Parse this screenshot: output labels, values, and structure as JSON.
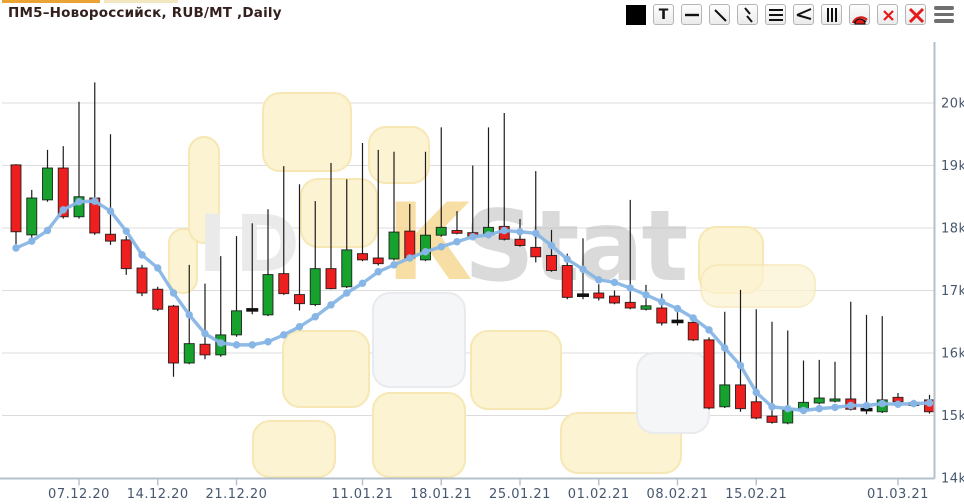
{
  "page": {
    "title": "ПМ5–Новороссийск, RUB/MT ,Daily"
  },
  "toolbar": {
    "text_tool_glyph": "T",
    "icons": [
      "fill-color-swatch",
      "text-tool",
      "horizontal-line-tool",
      "trendline-tool",
      "parallel-lines-tool",
      "fib-retracement-tool",
      "fan-lines-tool",
      "vertical-lines-tool",
      "fib-arcs-tool",
      "delete-tool",
      "delete-all-tool",
      "menu"
    ]
  },
  "watermark": {
    "letters_gray": "ID",
    "letter_accent": "К",
    "text_main": "Stat"
  },
  "chart_data": {
    "type": "candlestick",
    "title": "ПМ5–Новороссийск, RUB/MT ,Daily",
    "ylabel": "RUB/MT",
    "grid": true,
    "up_color": "#17a22e",
    "down_color": "#ee1f1f",
    "doji_color": "#111111",
    "wick_color": "#1c1c1c",
    "ma_color": "#87b6e6",
    "axis_line_color": "#b3c0cc",
    "label_color": "#47576d",
    "y_axis": {
      "min": 14000,
      "max": 20900,
      "ticks": [
        {
          "label": "20k",
          "value": 20000
        },
        {
          "label": "19k",
          "value": 19000
        },
        {
          "label": "18k",
          "value": 18000
        },
        {
          "label": "17k",
          "value": 17000
        },
        {
          "label": "16k",
          "value": 16000
        },
        {
          "label": "15k",
          "value": 15000
        },
        {
          "label": "14k",
          "value": 14000
        }
      ]
    },
    "x_axis": {
      "ticks": [
        {
          "label": "07.12.20",
          "candle": 5
        },
        {
          "label": "14.12.20",
          "candle": 10
        },
        {
          "label": "21.12.20",
          "candle": 15
        },
        {
          "label": "11.01.21",
          "candle": 23
        },
        {
          "label": "18.01.21",
          "candle": 28
        },
        {
          "label": "25.01.21",
          "candle": 33
        },
        {
          "label": "01.02.21",
          "candle": 38
        },
        {
          "label": "08.02.21",
          "candle": 43
        },
        {
          "label": "15.02.21",
          "candle": 48
        },
        {
          "label": "01.03.21",
          "candle": 57
        }
      ]
    },
    "candles": [
      [
        19010,
        19020,
        17740,
        17940,
        "r"
      ],
      [
        17890,
        18610,
        17810,
        18480,
        "g"
      ],
      [
        18450,
        19250,
        18420,
        18960,
        "g"
      ],
      [
        18960,
        19310,
        18150,
        18180,
        "r"
      ],
      [
        18180,
        20020,
        18150,
        18500,
        "g"
      ],
      [
        18480,
        20330,
        17890,
        17920,
        "r"
      ],
      [
        17900,
        19500,
        17730,
        17790,
        "r"
      ],
      [
        17810,
        17870,
        17250,
        17350,
        "r"
      ],
      [
        17360,
        17410,
        16910,
        16960,
        "r"
      ],
      [
        17020,
        17060,
        16670,
        16700,
        "r"
      ],
      [
        16750,
        16770,
        15620,
        15840,
        "r"
      ],
      [
        15840,
        17410,
        15820,
        16150,
        "g"
      ],
      [
        16140,
        17110,
        15900,
        15970,
        "r"
      ],
      [
        15970,
        17550,
        15940,
        16290,
        "g"
      ],
      [
        16290,
        17870,
        16260,
        16675,
        "g"
      ],
      [
        16695,
        18075,
        16620,
        16685,
        "k"
      ],
      [
        16610,
        18300,
        16590,
        17255,
        "g"
      ],
      [
        17270,
        18990,
        16930,
        16950,
        "r"
      ],
      [
        16935,
        18700,
        16680,
        16790,
        "r"
      ],
      [
        16775,
        18430,
        16750,
        17350,
        "g"
      ],
      [
        17350,
        19040,
        17020,
        17030,
        "r"
      ],
      [
        17060,
        18780,
        17040,
        17650,
        "g"
      ],
      [
        17590,
        19360,
        17470,
        17490,
        "r"
      ],
      [
        17520,
        19250,
        17400,
        17430,
        "r"
      ],
      [
        17505,
        19220,
        17480,
        17935,
        "g"
      ],
      [
        17950,
        18385,
        17490,
        17520,
        "r"
      ],
      [
        17490,
        19220,
        17470,
        17885,
        "g"
      ],
      [
        17885,
        19610,
        17860,
        18010,
        "g"
      ],
      [
        17960,
        18270,
        17900,
        17915,
        "r"
      ],
      [
        17925,
        19000,
        17850,
        17870,
        "r"
      ],
      [
        17890,
        19610,
        17870,
        18010,
        "g"
      ],
      [
        18025,
        19840,
        17800,
        17820,
        "r"
      ],
      [
        17820,
        18145,
        17700,
        17720,
        "r"
      ],
      [
        17690,
        18910,
        17450,
        17540,
        "r"
      ],
      [
        17560,
        17970,
        17300,
        17320,
        "r"
      ],
      [
        17400,
        17590,
        16860,
        16890,
        "r"
      ],
      [
        16930,
        17835,
        16860,
        16920,
        "k"
      ],
      [
        16960,
        17100,
        16840,
        16880,
        "r"
      ],
      [
        16910,
        17000,
        16780,
        16800,
        "r"
      ],
      [
        16810,
        18450,
        16700,
        16720,
        "r"
      ],
      [
        16700,
        17090,
        16680,
        16755,
        "g"
      ],
      [
        16720,
        16950,
        16440,
        16480,
        "r"
      ],
      [
        16510,
        16690,
        16440,
        16500,
        "k"
      ],
      [
        16490,
        16510,
        16190,
        16210,
        "r"
      ],
      [
        16210,
        16250,
        15100,
        15120,
        "r"
      ],
      [
        15140,
        16660,
        15120,
        15490,
        "g"
      ],
      [
        15490,
        17010,
        15060,
        15110,
        "r"
      ],
      [
        15220,
        16700,
        14940,
        14960,
        "r"
      ],
      [
        14990,
        16500,
        14870,
        14890,
        "r"
      ],
      [
        14880,
        16360,
        14860,
        15090,
        "g"
      ],
      [
        15090,
        15880,
        15070,
        15210,
        "g"
      ],
      [
        15200,
        15890,
        15180,
        15280,
        "g"
      ],
      [
        15230,
        15860,
        15210,
        15265,
        "g"
      ],
      [
        15265,
        16820,
        15080,
        15100,
        "r"
      ],
      [
        15100,
        16610,
        15020,
        15090,
        "k"
      ],
      [
        15060,
        16590,
        15040,
        15250,
        "g"
      ],
      [
        15290,
        15360,
        15140,
        15220,
        "r"
      ],
      [
        15210,
        15250,
        15140,
        15160,
        "r"
      ],
      [
        15250,
        15330,
        15030,
        15060,
        "r"
      ]
    ],
    "ma": [
      17680,
      17790,
      17960,
      18290,
      18420,
      18430,
      18270,
      17950,
      17570,
      17360,
      16960,
      16610,
      16310,
      16160,
      16130,
      16130,
      16180,
      16290,
      16420,
      16580,
      16770,
      16960,
      17115,
      17300,
      17410,
      17520,
      17620,
      17700,
      17780,
      17860,
      17890,
      17960,
      17940,
      17915,
      17720,
      17500,
      17340,
      17170,
      17130,
      17040,
      16930,
      16820,
      16710,
      16560,
      16370,
      16080,
      15800,
      15370,
      15140,
      15110,
      15080,
      15110,
      15130,
      15160,
      15160,
      15190,
      15180,
      15190,
      15200
    ]
  }
}
